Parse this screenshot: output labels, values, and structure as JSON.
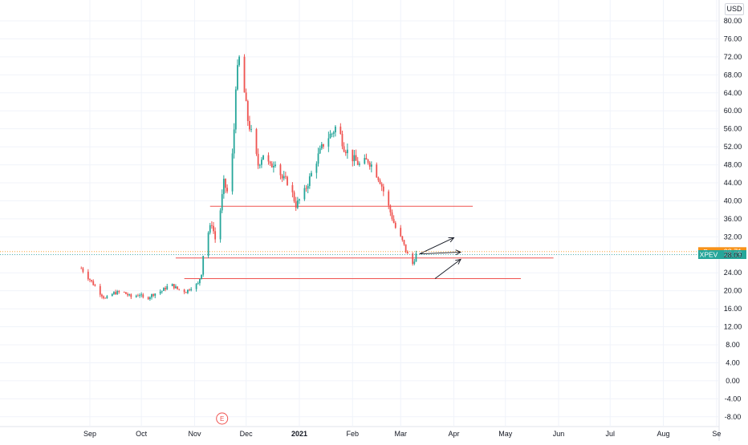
{
  "currency_label": "USD",
  "earnings_marker": "E",
  "chart_data": {
    "type": "candlestick",
    "symbol": "XPEV",
    "y_ticks": [
      "-8.00",
      "-4.00",
      "0.00",
      "4.00",
      "8.00",
      "12.00",
      "16.00",
      "20.00",
      "24.00",
      "28.00",
      "32.00",
      "36.00",
      "40.00",
      "44.00",
      "48.00",
      "52.00",
      "56.00",
      "60.00",
      "64.00",
      "68.00",
      "72.00",
      "76.00",
      "80.00"
    ],
    "ylim": [
      -10,
      82.5
    ],
    "x_ticks": [
      {
        "date": "2020-09-01",
        "label": "Sep",
        "bold": false
      },
      {
        "date": "2020-10-01",
        "label": "Oct",
        "bold": false
      },
      {
        "date": "2020-11-01",
        "label": "Nov",
        "bold": false
      },
      {
        "date": "2020-12-01",
        "label": "Dec",
        "bold": false
      },
      {
        "date": "2021-01-01",
        "label": "2021",
        "bold": true
      },
      {
        "date": "2021-02-01",
        "label": "Feb",
        "bold": false
      },
      {
        "date": "2021-03-01",
        "label": "Mar",
        "bold": false
      },
      {
        "date": "2021-04-01",
        "label": "Apr",
        "bold": false
      },
      {
        "date": "2021-05-01",
        "label": "May",
        "bold": false
      },
      {
        "date": "2021-06-01",
        "label": "Jun",
        "bold": false
      },
      {
        "date": "2021-07-01",
        "label": "Jul",
        "bold": false
      },
      {
        "date": "2021-08-01",
        "label": "Aug",
        "bold": false
      },
      {
        "date": "2021-09-01",
        "label": "Se",
        "bold": false
      }
    ],
    "xlim": [
      "2020-08-25",
      "2021-09-02"
    ],
    "price_path": [
      [
        "2020-08-27",
        25.0
      ],
      [
        "2020-09-02",
        22.0
      ],
      [
        "2020-09-07",
        19.5
      ],
      [
        "2020-09-10",
        18.2
      ],
      [
        "2020-09-15",
        19.5
      ],
      [
        "2020-09-20",
        19.8
      ],
      [
        "2020-09-25",
        18.6
      ],
      [
        "2020-09-30",
        19.2
      ],
      [
        "2020-10-03",
        18.0
      ],
      [
        "2020-10-08",
        19.3
      ],
      [
        "2020-10-13",
        20.0
      ],
      [
        "2020-10-18",
        21.5
      ],
      [
        "2020-10-22",
        20.4
      ],
      [
        "2020-10-27",
        19.8
      ],
      [
        "2020-10-30",
        20.8
      ],
      [
        "2020-11-03",
        21.5
      ],
      [
        "2020-11-05",
        24.0
      ],
      [
        "2020-11-06",
        28.0
      ],
      [
        "2020-11-09",
        33.0
      ],
      [
        "2020-11-11",
        35.0
      ],
      [
        "2020-11-13",
        31.5
      ],
      [
        "2020-11-16",
        38.0
      ],
      [
        "2020-11-18",
        44.0
      ],
      [
        "2020-11-20",
        42.0
      ],
      [
        "2020-11-23",
        50.0
      ],
      [
        "2020-11-24",
        56.0
      ],
      [
        "2020-11-25",
        66.0
      ],
      [
        "2020-11-27",
        71.5
      ],
      [
        "2020-11-30",
        64.0
      ],
      [
        "2020-12-02",
        58.0
      ],
      [
        "2020-12-04",
        55.0
      ],
      [
        "2020-12-08",
        48.0
      ],
      [
        "2020-12-11",
        50.5
      ],
      [
        "2020-12-15",
        47.5
      ],
      [
        "2020-12-18",
        49.0
      ],
      [
        "2020-12-22",
        45.0
      ],
      [
        "2020-12-26",
        44.0
      ],
      [
        "2020-12-30",
        39.0
      ],
      [
        "2021-01-04",
        42.0
      ],
      [
        "2021-01-08",
        46.0
      ],
      [
        "2021-01-12",
        50.0
      ],
      [
        "2021-01-16",
        53.5
      ],
      [
        "2021-01-20",
        55.0
      ],
      [
        "2021-01-23",
        57.0
      ],
      [
        "2021-01-27",
        52.0
      ],
      [
        "2021-02-01",
        49.5
      ],
      [
        "2021-02-05",
        48.0
      ],
      [
        "2021-02-10",
        49.0
      ],
      [
        "2021-02-13",
        47.5
      ],
      [
        "2021-02-17",
        44.5
      ],
      [
        "2021-02-20",
        41.0
      ],
      [
        "2021-02-23",
        37.5
      ],
      [
        "2021-02-26",
        34.0
      ],
      [
        "2021-03-02",
        31.0
      ],
      [
        "2021-03-05",
        28.0
      ],
      [
        "2021-03-08",
        26.0
      ],
      [
        "2021-03-10",
        28.05
      ]
    ],
    "horizontal_lines": [
      {
        "start": "2020-11-10",
        "end": "2021-04-12",
        "price": 38.8
      },
      {
        "start": "2020-10-21",
        "end": "2021-05-29",
        "price": 27.3
      },
      {
        "start": "2020-10-26",
        "end": "2021-05-10",
        "price": 22.7
      }
    ],
    "arrows": [
      {
        "from_date": "2021-03-12",
        "from_price": 28.2,
        "to_date": "2021-04-01",
        "to_price": 31.8
      },
      {
        "from_date": "2021-03-12",
        "from_price": 28.2,
        "to_date": "2021-04-05",
        "to_price": 28.6
      },
      {
        "from_date": "2021-03-21",
        "from_price": 22.7,
        "to_date": "2021-04-05",
        "to_price": 27.0
      }
    ],
    "earnings_date": "2020-11-17",
    "price_labels": [
      {
        "tag": "Pre",
        "value": "28.71",
        "price": 28.71,
        "color": "#f7931a"
      },
      {
        "tag": "XPEV",
        "value": "28.05",
        "price": 28.05,
        "color": "#26a69a"
      }
    ],
    "up_color": "#26a69a",
    "down_color": "#ef5350",
    "level_line_color": "#ef5350",
    "grid": true
  }
}
